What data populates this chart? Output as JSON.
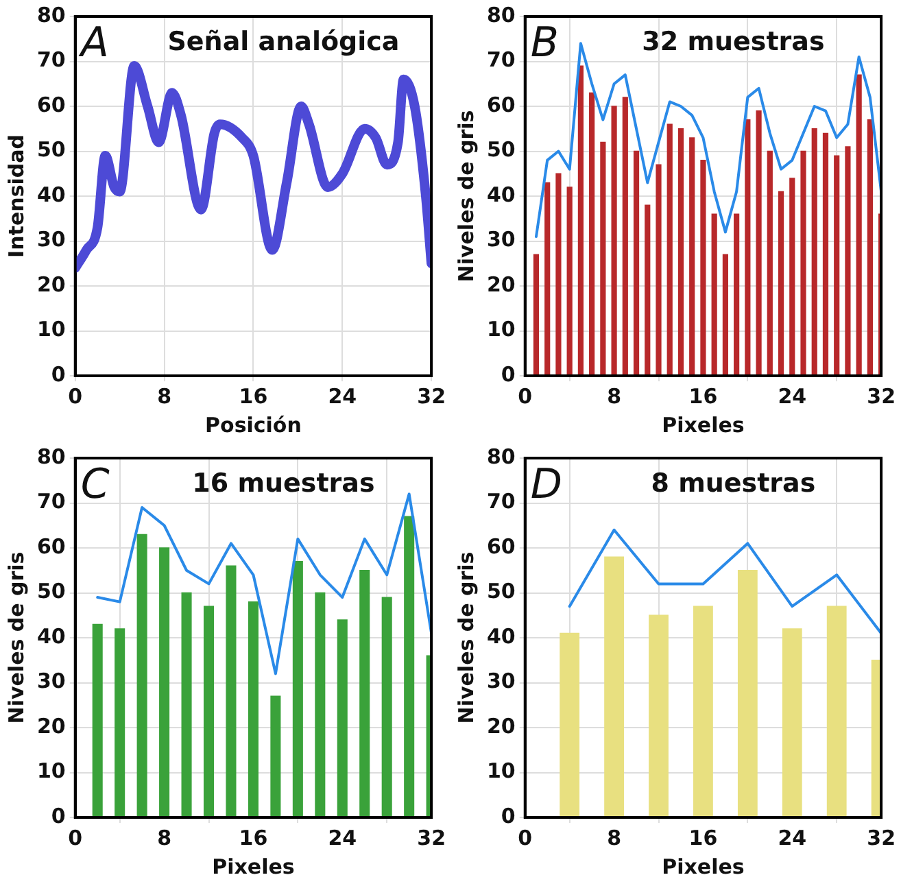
{
  "chart_data": [
    {
      "type": "line",
      "title": "Señal analógica",
      "annotations": [
        "A"
      ],
      "xlabel": "Posición",
      "ylabel": "Intensidad",
      "xlim": [
        0,
        32
      ],
      "xticks": [
        0,
        8,
        16,
        24,
        32
      ],
      "ylim": [
        0,
        80
      ],
      "yticks": [
        0,
        10,
        20,
        30,
        40,
        50,
        60,
        70,
        80
      ],
      "grid": true,
      "legend": false,
      "marker": "none",
      "line_style": "solid",
      "series": [
        {
          "color": "#4d4ad6",
          "x": [
            0,
            1,
            2,
            2.7,
            3.5,
            4,
            5.3,
            6.5,
            7.5,
            8.7,
            9.5,
            11.3,
            12.5,
            13,
            15,
            16,
            17.7,
            19,
            20.3,
            21,
            22.7,
            24,
            26,
            27,
            28,
            29,
            29.5,
            30.5,
            31.5,
            32
          ],
          "values": [
            24,
            28,
            33,
            49,
            42,
            41,
            69,
            60,
            52,
            63,
            58,
            37,
            54,
            56,
            53,
            49,
            28,
            43,
            60,
            56,
            42,
            45,
            55,
            53,
            47,
            52,
            66,
            60,
            40,
            25
          ]
        }
      ]
    },
    {
      "type": "bar",
      "title": "32 muestras",
      "annotations": [
        "B"
      ],
      "xlabel": "Pixeles",
      "ylabel": "Niveles de gris",
      "xlim": [
        0,
        32
      ],
      "xticks": [
        0,
        8,
        16,
        24,
        32
      ],
      "ylim": [
        0,
        80
      ],
      "yticks": [
        0,
        10,
        20,
        30,
        40,
        50,
        60,
        70,
        80
      ],
      "grid": true,
      "legend": false,
      "marker": "none",
      "line_style": "solid",
      "series": [
        {
          "type": "bar",
          "color": "#b8282a",
          "x": [
            1,
            2,
            3,
            4,
            5,
            6,
            7,
            8,
            9,
            10,
            11,
            12,
            13,
            14,
            15,
            16,
            17,
            18,
            19,
            20,
            21,
            22,
            23,
            24,
            25,
            26,
            27,
            28,
            29,
            30,
            31,
            32
          ],
          "values": [
            27,
            43,
            45,
            42,
            69,
            63,
            52,
            60,
            62,
            50,
            38,
            47,
            56,
            55,
            53,
            48,
            36,
            27,
            36,
            57,
            59,
            50,
            41,
            44,
            50,
            55,
            54,
            49,
            51,
            67,
            57,
            36
          ]
        },
        {
          "type": "line",
          "color": "#2a8ae8",
          "x": [
            1,
            2,
            3,
            4,
            5,
            6,
            7,
            8,
            9,
            10,
            11,
            12,
            13,
            14,
            15,
            16,
            17,
            18,
            19,
            20,
            21,
            22,
            23,
            24,
            25,
            26,
            27,
            28,
            29,
            30,
            31,
            32
          ],
          "values": [
            31,
            48,
            50,
            46,
            74,
            65,
            57,
            65,
            67,
            55,
            43,
            52,
            61,
            60,
            58,
            53,
            41,
            32,
            41,
            62,
            64,
            54,
            46,
            48,
            54,
            60,
            59,
            53,
            56,
            71,
            62,
            41
          ]
        }
      ]
    },
    {
      "type": "bar",
      "title": "16 muestras",
      "annotations": [
        "C"
      ],
      "xlabel": "Pixeles",
      "ylabel": "Niveles de gris",
      "xlim": [
        0,
        32
      ],
      "xticks": [
        0,
        8,
        16,
        24,
        32
      ],
      "ylim": [
        0,
        80
      ],
      "yticks": [
        0,
        10,
        20,
        30,
        40,
        50,
        60,
        70,
        80
      ],
      "grid": true,
      "legend": false,
      "marker": "none",
      "line_style": "solid",
      "series": [
        {
          "type": "bar",
          "color": "#3aa23a",
          "x": [
            2,
            4,
            6,
            8,
            10,
            12,
            14,
            16,
            18,
            20,
            22,
            24,
            26,
            28,
            30,
            32
          ],
          "values": [
            43,
            42,
            63,
            60,
            50,
            47,
            56,
            48,
            27,
            57,
            50,
            44,
            55,
            49,
            67,
            36
          ]
        },
        {
          "type": "line",
          "color": "#2a8ae8",
          "x": [
            2,
            4,
            6,
            8,
            10,
            12,
            14,
            16,
            18,
            20,
            22,
            24,
            26,
            28,
            30,
            32
          ],
          "values": [
            49,
            48,
            69,
            65,
            55,
            52,
            61,
            54,
            32,
            62,
            54,
            49,
            62,
            54,
            72,
            41
          ]
        }
      ]
    },
    {
      "type": "bar",
      "title": "8 muestras",
      "annotations": [
        "D"
      ],
      "xlabel": "Pixeles",
      "ylabel": "Niveles de gris",
      "xlim": [
        0,
        32
      ],
      "xticks": [
        0,
        8,
        16,
        24,
        32
      ],
      "ylim": [
        0,
        80
      ],
      "yticks": [
        0,
        10,
        20,
        30,
        40,
        50,
        60,
        70,
        80
      ],
      "grid": true,
      "legend": false,
      "marker": "none",
      "line_style": "solid",
      "series": [
        {
          "type": "bar",
          "color": "#e8e080",
          "x": [
            4,
            8,
            12,
            16,
            20,
            24,
            28,
            32
          ],
          "values": [
            41,
            58,
            45,
            47,
            55,
            42,
            47,
            35
          ]
        },
        {
          "type": "line",
          "color": "#2a8ae8",
          "x": [
            4,
            8,
            12,
            16,
            20,
            24,
            28,
            32
          ],
          "values": [
            47,
            64,
            52,
            52,
            61,
            47,
            54,
            41
          ]
        }
      ]
    }
  ]
}
